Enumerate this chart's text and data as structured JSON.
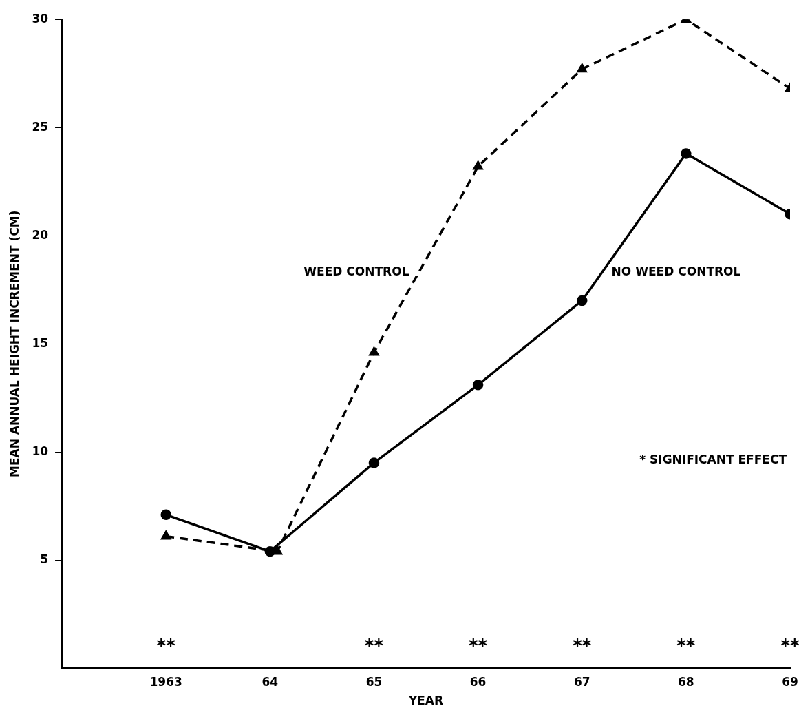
{
  "chart_data": {
    "type": "line",
    "xlabel": "YEAR",
    "ylabel": "MEAN ANNUAL HEIGHT INCREMENT (CM)",
    "x": [
      1963,
      1964,
      1965,
      1966,
      1967,
      1968,
      1969
    ],
    "xlim": [
      1962,
      1969
    ],
    "xticks": [
      {
        "value": 1963,
        "label": "1963"
      },
      {
        "value": 1964,
        "label": "64"
      },
      {
        "value": 1965,
        "label": "65"
      },
      {
        "value": 1966,
        "label": "66"
      },
      {
        "value": 1967,
        "label": "67"
      },
      {
        "value": 1968,
        "label": "68"
      },
      {
        "value": 1969,
        "label": "69"
      }
    ],
    "ylim": [
      0,
      30
    ],
    "yticks": [
      5,
      10,
      15,
      20,
      25,
      30
    ],
    "series": [
      {
        "name": "WEED CONTROL",
        "color": "#000000",
        "marker": "triangle",
        "line_style": "dashed",
        "x": [
          1963,
          1964.07,
          1965,
          1966,
          1967,
          1968,
          1969
        ],
        "values": [
          6.1,
          5.4,
          14.6,
          23.2,
          27.7,
          30.0,
          26.8
        ]
      },
      {
        "name": "NO WEED CONTROL",
        "color": "#000000",
        "marker": "circle",
        "line_style": "solid",
        "values": [
          7.1,
          5.4,
          9.5,
          13.1,
          17.0,
          23.8,
          21.0
        ]
      }
    ],
    "annotations": [
      "**",
      "**",
      "**",
      "**",
      "**",
      "**",
      "* SIGNIFICANT EFFECT"
    ],
    "grid": false,
    "legend": false
  }
}
